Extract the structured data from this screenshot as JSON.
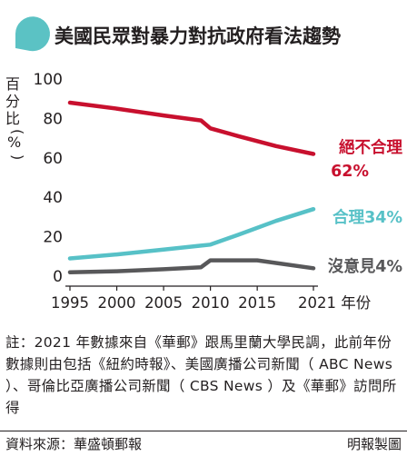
{
  "title": "美國民眾對暴力對抗政府看法趨勢",
  "colors": {
    "bubble": "#5bc2c4",
    "red": "#c8102e",
    "teal": "#57c1c7",
    "gray": "#58585a",
    "text": "#231f20"
  },
  "chart_data": {
    "type": "line",
    "y_unit": "百分比 (%)",
    "ylim": [
      0,
      100
    ],
    "y_ticks": [
      0,
      20,
      40,
      60,
      80,
      100
    ],
    "xlim": [
      1995,
      2021
    ],
    "x_ticks": [
      "1995",
      "2000",
      "2005",
      "2010",
      "2015",
      "2021 年份"
    ],
    "series": [
      {
        "name": "絕不合理",
        "end_label": "62%",
        "color": "#c8102e",
        "points": [
          [
            1995,
            88
          ],
          [
            2000,
            85
          ],
          [
            2005,
            81.5
          ],
          [
            2009,
            79
          ],
          [
            2010,
            75
          ],
          [
            2013,
            71
          ],
          [
            2017,
            66
          ],
          [
            2021,
            62
          ]
        ]
      },
      {
        "name": "合理",
        "end_label": "34%",
        "color": "#57c1c7",
        "points": [
          [
            1995,
            9
          ],
          [
            2000,
            11
          ],
          [
            2005,
            13.5
          ],
          [
            2009,
            15.5
          ],
          [
            2010,
            16
          ],
          [
            2013,
            21
          ],
          [
            2017,
            28
          ],
          [
            2021,
            34
          ]
        ]
      },
      {
        "name": "沒意見",
        "end_label": "4%",
        "color": "#58585a",
        "points": [
          [
            1995,
            2
          ],
          [
            2000,
            2.5
          ],
          [
            2005,
            3.5
          ],
          [
            2009,
            4.5
          ],
          [
            2010,
            8
          ],
          [
            2015,
            8
          ],
          [
            2021,
            4
          ]
        ]
      }
    ]
  },
  "note": "註：2021 年數據來自《華郵》跟馬里蘭大學民調，此前年份數據則由包括《紐約時報》、美國廣播公司新聞（ ABC News ）、哥倫比亞廣播公司新聞（ CBS News ）及《華郵》訪問所得",
  "source": "資料來源：華盛頓郵報",
  "credit": "明報製圖"
}
